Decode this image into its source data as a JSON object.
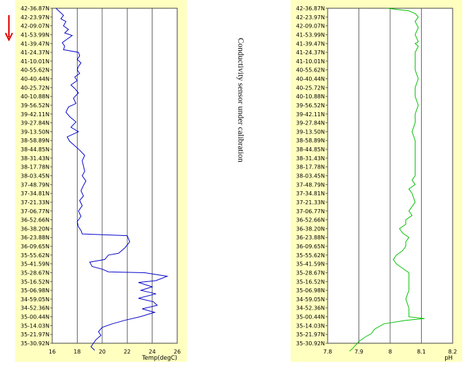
{
  "annotation": "Conductivity sensor under calibration",
  "colors": {
    "panel": "#ffffc0",
    "temp_line": "#0000c8",
    "ph_line": "#00c000",
    "arrow": "#e00000",
    "grid": "#404040"
  },
  "arrow_icon": "down-arrow-icon",
  "chart_data": [
    {
      "type": "line",
      "id": "temp",
      "xlabel": "Temp(degC)",
      "xlim": [
        16,
        26
      ],
      "xticks": [
        "16",
        "18",
        "20",
        "22",
        "24",
        "26"
      ],
      "ylabel": "",
      "ytick_labels": [
        "42-36.87N",
        "42-23.97N",
        "42-09.07N",
        "41-53.99N",
        "41-39.47N",
        "41-24.37N",
        "41-10.01N",
        "40-55.62N",
        "40-40.44N",
        "40-25.72N",
        "40-10.88N",
        "39-56.52N",
        "39-42.11N",
        "39-27.84N",
        "39-13.50N",
        "38-58.89N",
        "38-44.85N",
        "38-31.43N",
        "38-17.78N",
        "38-03.45N",
        "37-48.79N",
        "37-34.81N",
        "37-21.33N",
        "37-06.77N",
        "36-52.66N",
        "36-38.20N",
        "36-23.88N",
        "36-09.65N",
        "35-55.62N",
        "35-41.59N",
        "35-28.67N",
        "35-16.52N",
        "35-06.98N",
        "34-59.05N",
        "34-52.36N",
        "35-00.44N",
        "35-14.03N",
        "35-21.97N",
        "35-30.92N"
      ],
      "series": [
        {
          "values": [
            [
              16.3,
              0
            ],
            [
              16.6,
              0.4
            ],
            [
              16.9,
              0.8
            ],
            [
              16.7,
              1.2
            ],
            [
              17.1,
              1.5
            ],
            [
              16.9,
              2.0
            ],
            [
              17.3,
              2.4
            ],
            [
              17.0,
              2.8
            ],
            [
              17.6,
              3.1
            ],
            [
              17.2,
              3.5
            ],
            [
              16.8,
              3.9
            ],
            [
              17.0,
              4.3
            ],
            [
              16.9,
              4.7
            ],
            [
              18.1,
              5.0
            ],
            [
              18.2,
              5.4
            ],
            [
              18.0,
              5.8
            ],
            [
              18.3,
              6.2
            ],
            [
              18.1,
              6.6
            ],
            [
              18.0,
              7.0
            ],
            [
              18.2,
              7.4
            ],
            [
              17.8,
              7.8
            ],
            [
              18.0,
              8.2
            ],
            [
              17.5,
              8.7
            ],
            [
              17.8,
              9.1
            ],
            [
              18.1,
              9.6
            ],
            [
              17.7,
              10.2
            ],
            [
              17.9,
              10.8
            ],
            [
              17.3,
              11.2
            ],
            [
              17.1,
              11.8
            ],
            [
              17.4,
              12.3
            ],
            [
              17.9,
              12.9
            ],
            [
              17.5,
              13.5
            ],
            [
              18.1,
              14.0
            ],
            [
              17.2,
              14.6
            ],
            [
              17.4,
              15.1
            ],
            [
              17.8,
              15.6
            ],
            [
              18.2,
              16.1
            ],
            [
              18.6,
              16.7
            ],
            [
              18.4,
              17.3
            ],
            [
              18.5,
              17.9
            ],
            [
              18.6,
              18.5
            ],
            [
              18.4,
              19.0
            ],
            [
              18.7,
              19.6
            ],
            [
              18.5,
              20.1
            ],
            [
              18.3,
              20.7
            ],
            [
              18.5,
              21.3
            ],
            [
              18.2,
              21.8
            ],
            [
              18.4,
              22.4
            ],
            [
              18.1,
              23.0
            ],
            [
              18.3,
              23.6
            ],
            [
              18.0,
              24.2
            ],
            [
              18.1,
              24.8
            ],
            [
              18.3,
              25.2
            ],
            [
              18.4,
              25.6
            ],
            [
              22.0,
              25.8
            ],
            [
              22.2,
              26.5
            ],
            [
              21.8,
              27.2
            ],
            [
              21.3,
              27.8
            ],
            [
              20.5,
              28.0
            ],
            [
              20.2,
              28.5
            ],
            [
              19.0,
              28.8
            ],
            [
              19.2,
              29.3
            ],
            [
              20.0,
              29.6
            ],
            [
              20.5,
              29.9
            ],
            [
              23.4,
              30.0
            ],
            [
              25.2,
              30.4
            ],
            [
              24.3,
              30.9
            ],
            [
              22.9,
              31.1
            ],
            [
              24.0,
              31.6
            ],
            [
              23.1,
              32.0
            ],
            [
              24.3,
              32.4
            ],
            [
              22.9,
              32.9
            ],
            [
              24.1,
              33.3
            ],
            [
              24.4,
              33.7
            ],
            [
              23.2,
              34.1
            ],
            [
              24.2,
              34.5
            ],
            [
              23.0,
              35.0
            ],
            [
              21.8,
              35.4
            ],
            [
              20.8,
              35.8
            ],
            [
              20.0,
              36.2
            ],
            [
              19.7,
              36.7
            ],
            [
              19.9,
              37.1
            ],
            [
              19.5,
              37.6
            ],
            [
              19.3,
              38.0
            ],
            [
              19.1,
              38.4
            ],
            [
              19.4,
              38.8
            ]
          ]
        }
      ]
    },
    {
      "type": "line",
      "id": "ph",
      "xlabel": "pH",
      "xlim": [
        7.8,
        8.2
      ],
      "xticks": [
        "7.8",
        "7.9",
        "8",
        "8.1",
        "8.2"
      ],
      "ylabel": "",
      "ytick_labels": [
        "42-36.87N",
        "42-23.97N",
        "42-09.07N",
        "41-53.99N",
        "41-39.47N",
        "41-24.37N",
        "41-10.01N",
        "40-55.62N",
        "40-40.44N",
        "40-25.72N",
        "40-10.88N",
        "39-56.52N",
        "39-42.11N",
        "39-27.84N",
        "39-13.50N",
        "38-58.89N",
        "38-44.85N",
        "38-31.43N",
        "38-17.78N",
        "38-03.45N",
        "37-48.79N",
        "37-34.81N",
        "37-21.33N",
        "37-06.77N",
        "36-52.66N",
        "36-38.20N",
        "36-23.88N",
        "36-09.65N",
        "35-55.62N",
        "35-41.59N",
        "35-28.67N",
        "35-16.52N",
        "35-06.98N",
        "34-59.05N",
        "34-52.36N",
        "35-00.44N",
        "35-14.03N",
        "35-21.97N",
        "35-30.92N"
      ],
      "series": [
        {
          "values": [
            [
              7.99,
              0
            ],
            [
              8.06,
              0.3
            ],
            [
              8.08,
              0.6
            ],
            [
              8.09,
              1.0
            ],
            [
              8.08,
              1.5
            ],
            [
              8.09,
              2.2
            ],
            [
              8.08,
              3.0
            ],
            [
              8.09,
              3.8
            ],
            [
              8.08,
              4.0
            ],
            [
              8.09,
              4.3
            ],
            [
              8.08,
              5.0
            ],
            [
              8.08,
              6.0
            ],
            [
              8.08,
              7.0
            ],
            [
              8.09,
              8.0
            ],
            [
              8.08,
              9.0
            ],
            [
              8.08,
              10.0
            ],
            [
              8.09,
              11.0
            ],
            [
              8.08,
              12.0
            ],
            [
              8.08,
              13.0
            ],
            [
              8.07,
              14.0
            ],
            [
              8.08,
              15.0
            ],
            [
              8.08,
              16.0
            ],
            [
              8.08,
              17.0
            ],
            [
              8.08,
              18.0
            ],
            [
              8.08,
              19.0
            ],
            [
              8.07,
              19.5
            ],
            [
              8.08,
              20.0
            ],
            [
              8.06,
              20.5
            ],
            [
              8.07,
              21.0
            ],
            [
              8.08,
              22.0
            ],
            [
              8.06,
              23.0
            ],
            [
              8.07,
              23.5
            ],
            [
              8.05,
              24.0
            ],
            [
              8.05,
              24.5
            ],
            [
              8.03,
              25.0
            ],
            [
              8.04,
              25.5
            ],
            [
              8.06,
              26.0
            ],
            [
              8.05,
              26.5
            ],
            [
              8.05,
              27.0
            ],
            [
              8.04,
              27.5
            ],
            [
              8.02,
              28.0
            ],
            [
              8.01,
              28.5
            ],
            [
              8.02,
              29.0
            ],
            [
              8.04,
              29.5
            ],
            [
              8.06,
              30.0
            ],
            [
              8.06,
              31.0
            ],
            [
              8.06,
              32.0
            ],
            [
              8.05,
              33.0
            ],
            [
              8.06,
              34.0
            ],
            [
              8.06,
              35.0
            ],
            [
              8.11,
              35.2
            ],
            [
              8.05,
              35.4
            ],
            [
              7.98,
              35.8
            ],
            [
              7.95,
              36.4
            ],
            [
              7.94,
              36.9
            ],
            [
              7.92,
              37.3
            ],
            [
              7.9,
              37.8
            ],
            [
              7.89,
              38.2
            ],
            [
              7.88,
              38.6
            ],
            [
              7.87,
              38.9
            ]
          ]
        }
      ]
    }
  ]
}
